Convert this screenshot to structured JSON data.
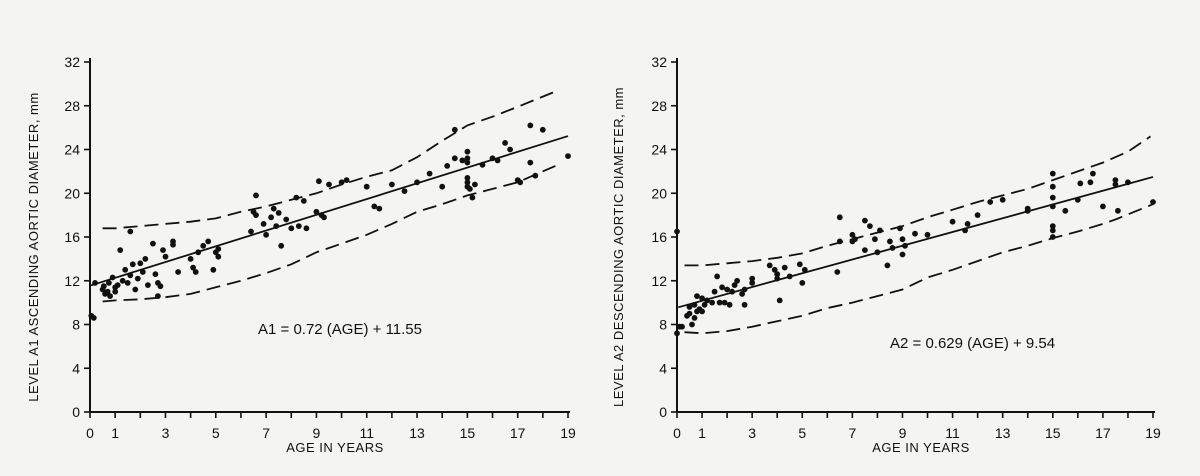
{
  "colors": {
    "ink": "#111111",
    "paper": "#f4f4f2"
  },
  "chart_data": [
    {
      "type": "scatter",
      "xlabel": "AGE IN YEARS",
      "ylabel": "LEVEL A1 ASCENDING AORTIC DIAMETER, mm",
      "annotation": "A1 = 0.72 (AGE) + 11.55",
      "xlim": [
        0,
        19
      ],
      "ylim": [
        0,
        32
      ],
      "xticks": [
        0,
        1,
        3,
        5,
        7,
        9,
        11,
        13,
        15,
        17,
        19
      ],
      "yticks": [
        0,
        4,
        8,
        12,
        16,
        20,
        24,
        28,
        32
      ],
      "grid": false,
      "regression": {
        "slope": 0.72,
        "intercept": 11.55,
        "x_range": [
          0,
          19
        ]
      },
      "upper_band": [
        [
          0.5,
          16.8
        ],
        [
          1,
          16.8
        ],
        [
          2,
          17.0
        ],
        [
          3,
          17.2
        ],
        [
          4,
          17.4
        ],
        [
          5,
          17.7
        ],
        [
          6,
          18.3
        ],
        [
          7,
          18.8
        ],
        [
          8,
          19.4
        ],
        [
          9,
          20.0
        ],
        [
          10,
          20.8
        ],
        [
          11,
          21.5
        ],
        [
          12,
          22.1
        ],
        [
          13,
          23.3
        ],
        [
          14,
          24.8
        ],
        [
          15,
          26.2
        ],
        [
          16,
          27.0
        ],
        [
          17,
          27.9
        ],
        [
          18.5,
          29.3
        ]
      ],
      "lower_band": [
        [
          0.5,
          10.1
        ],
        [
          1,
          10.2
        ],
        [
          2,
          10.3
        ],
        [
          3,
          10.5
        ],
        [
          4,
          10.8
        ],
        [
          5,
          11.4
        ],
        [
          6,
          12.0
        ],
        [
          7,
          12.7
        ],
        [
          8,
          13.5
        ],
        [
          9,
          14.6
        ],
        [
          10,
          15.4
        ],
        [
          11,
          16.2
        ],
        [
          12,
          17.2
        ],
        [
          13,
          18.3
        ],
        [
          14,
          19.0
        ],
        [
          15,
          19.8
        ],
        [
          16,
          20.4
        ],
        [
          17,
          21.0
        ],
        [
          18.5,
          22.5
        ]
      ],
      "points": [
        [
          0.05,
          8.8
        ],
        [
          0.15,
          8.6
        ],
        [
          0.2,
          11.8
        ],
        [
          0.5,
          11.2
        ],
        [
          0.55,
          11.5
        ],
        [
          0.6,
          10.8
        ],
        [
          0.7,
          11.0
        ],
        [
          0.75,
          11.8
        ],
        [
          0.8,
          10.6
        ],
        [
          0.9,
          12.3
        ],
        [
          1.0,
          11.4
        ],
        [
          1.0,
          11.0
        ],
        [
          1.1,
          11.6
        ],
        [
          1.2,
          14.8
        ],
        [
          1.3,
          12.0
        ],
        [
          1.4,
          13.0
        ],
        [
          1.5,
          11.8
        ],
        [
          1.6,
          12.5
        ],
        [
          1.6,
          16.5
        ],
        [
          1.7,
          13.5
        ],
        [
          1.8,
          11.2
        ],
        [
          1.9,
          12.2
        ],
        [
          2.0,
          13.6
        ],
        [
          2.1,
          12.8
        ],
        [
          2.2,
          14.0
        ],
        [
          2.3,
          11.6
        ],
        [
          2.5,
          15.4
        ],
        [
          2.6,
          12.6
        ],
        [
          2.7,
          11.8
        ],
        [
          2.7,
          10.6
        ],
        [
          2.8,
          11.5
        ],
        [
          2.9,
          14.8
        ],
        [
          3.0,
          14.2
        ],
        [
          3.3,
          15.6
        ],
        [
          3.3,
          15.3
        ],
        [
          3.5,
          12.8
        ],
        [
          4.0,
          14.0
        ],
        [
          4.1,
          13.2
        ],
        [
          4.2,
          12.8
        ],
        [
          4.3,
          14.6
        ],
        [
          4.5,
          15.2
        ],
        [
          4.7,
          15.6
        ],
        [
          4.9,
          13.0
        ],
        [
          5.0,
          14.6
        ],
        [
          5.1,
          14.2
        ],
        [
          5.1,
          14.9
        ],
        [
          6.4,
          16.5
        ],
        [
          6.5,
          18.3
        ],
        [
          6.6,
          18.0
        ],
        [
          6.6,
          19.8
        ],
        [
          6.9,
          17.2
        ],
        [
          7.0,
          16.2
        ],
        [
          7.2,
          17.8
        ],
        [
          7.3,
          18.6
        ],
        [
          7.4,
          17.0
        ],
        [
          7.5,
          18.2
        ],
        [
          7.6,
          15.2
        ],
        [
          7.8,
          17.6
        ],
        [
          8.0,
          16.8
        ],
        [
          8.2,
          19.6
        ],
        [
          8.3,
          17.0
        ],
        [
          8.5,
          19.3
        ],
        [
          8.6,
          16.8
        ],
        [
          9.0,
          18.3
        ],
        [
          9.1,
          21.1
        ],
        [
          9.2,
          18.0
        ],
        [
          9.3,
          17.8
        ],
        [
          9.5,
          20.8
        ],
        [
          10.0,
          21.0
        ],
        [
          10.2,
          21.2
        ],
        [
          11.0,
          20.6
        ],
        [
          11.3,
          18.8
        ],
        [
          11.5,
          18.6
        ],
        [
          12.0,
          20.8
        ],
        [
          12.5,
          20.2
        ],
        [
          13.0,
          21.0
        ],
        [
          13.5,
          21.8
        ],
        [
          14.0,
          20.6
        ],
        [
          14.2,
          22.5
        ],
        [
          14.5,
          25.8
        ],
        [
          14.5,
          23.2
        ],
        [
          14.8,
          23.0
        ],
        [
          15.0,
          23.8
        ],
        [
          15.0,
          23.2
        ],
        [
          15.0,
          22.8
        ],
        [
          15.0,
          21.4
        ],
        [
          15.0,
          21.0
        ],
        [
          15.0,
          20.6
        ],
        [
          15.1,
          20.4
        ],
        [
          15.2,
          19.6
        ],
        [
          15.3,
          20.8
        ],
        [
          15.6,
          22.6
        ],
        [
          16.0,
          23.2
        ],
        [
          16.2,
          23.0
        ],
        [
          16.5,
          24.6
        ],
        [
          16.7,
          24.0
        ],
        [
          17.0,
          21.2
        ],
        [
          17.1,
          21.0
        ],
        [
          17.5,
          26.2
        ],
        [
          17.5,
          22.8
        ],
        [
          17.7,
          21.6
        ],
        [
          18.0,
          25.8
        ],
        [
          19.0,
          23.4
        ]
      ]
    },
    {
      "type": "scatter",
      "xlabel": "AGE IN YEARS",
      "ylabel": "LEVEL A2 DESCENDING AORTIC DIAMETER, mm",
      "annotation": "A2 = 0.629 (AGE) + 9.54",
      "xlim": [
        0,
        19
      ],
      "ylim": [
        0,
        32
      ],
      "xticks": [
        0,
        1,
        3,
        5,
        7,
        9,
        11,
        13,
        15,
        17,
        19
      ],
      "yticks": [
        0,
        4,
        8,
        12,
        16,
        20,
        24,
        28,
        32
      ],
      "grid": false,
      "regression": {
        "slope": 0.629,
        "intercept": 9.54,
        "x_range": [
          0.05,
          19
        ]
      },
      "upper_band": [
        [
          0.3,
          13.4
        ],
        [
          1,
          13.4
        ],
        [
          2,
          13.6
        ],
        [
          3,
          13.8
        ],
        [
          4,
          14.1
        ],
        [
          5,
          14.5
        ],
        [
          6,
          15.2
        ],
        [
          7,
          15.8
        ],
        [
          8,
          16.4
        ],
        [
          9,
          17.0
        ],
        [
          10,
          17.8
        ],
        [
          11,
          18.5
        ],
        [
          12,
          19.2
        ],
        [
          13,
          19.8
        ],
        [
          14,
          20.4
        ],
        [
          15,
          21.2
        ],
        [
          16,
          22.0
        ],
        [
          17,
          22.8
        ],
        [
          18,
          23.8
        ],
        [
          18.9,
          25.2
        ]
      ],
      "lower_band": [
        [
          0.3,
          7.3
        ],
        [
          1,
          7.2
        ],
        [
          2,
          7.4
        ],
        [
          3,
          7.8
        ],
        [
          4,
          8.3
        ],
        [
          5,
          8.8
        ],
        [
          6,
          9.5
        ],
        [
          7,
          10.0
        ],
        [
          8,
          10.6
        ],
        [
          9,
          11.2
        ],
        [
          10,
          12.3
        ],
        [
          11,
          13.0
        ],
        [
          12,
          13.8
        ],
        [
          13,
          14.6
        ],
        [
          14,
          15.2
        ],
        [
          15,
          15.9
        ],
        [
          16,
          16.5
        ],
        [
          17,
          17.2
        ],
        [
          17.5,
          17.6
        ],
        [
          19,
          19.0
        ]
      ],
      "points": [
        [
          0.0,
          16.5
        ],
        [
          0.0,
          7.2
        ],
        [
          0.1,
          7.8
        ],
        [
          0.2,
          7.8
        ],
        [
          0.4,
          8.8
        ],
        [
          0.5,
          9.6
        ],
        [
          0.5,
          9.0
        ],
        [
          0.6,
          8.0
        ],
        [
          0.7,
          9.8
        ],
        [
          0.7,
          8.6
        ],
        [
          0.8,
          10.6
        ],
        [
          0.8,
          9.2
        ],
        [
          0.9,
          9.4
        ],
        [
          1.0,
          10.4
        ],
        [
          1.0,
          9.2
        ],
        [
          1.1,
          9.8
        ],
        [
          1.2,
          10.2
        ],
        [
          1.4,
          10.0
        ],
        [
          1.5,
          11.0
        ],
        [
          1.6,
          12.4
        ],
        [
          1.7,
          10.0
        ],
        [
          1.8,
          11.4
        ],
        [
          1.9,
          10.0
        ],
        [
          2.0,
          11.2
        ],
        [
          2.1,
          9.8
        ],
        [
          2.2,
          11.0
        ],
        [
          2.3,
          11.6
        ],
        [
          2.4,
          12.0
        ],
        [
          2.6,
          10.8
        ],
        [
          2.7,
          11.2
        ],
        [
          2.7,
          9.8
        ],
        [
          3.0,
          12.2
        ],
        [
          3.0,
          11.8
        ],
        [
          3.7,
          13.4
        ],
        [
          3.9,
          13.0
        ],
        [
          4.0,
          12.6
        ],
        [
          4.0,
          12.2
        ],
        [
          4.1,
          10.2
        ],
        [
          4.3,
          13.2
        ],
        [
          4.5,
          12.4
        ],
        [
          4.9,
          13.5
        ],
        [
          5.0,
          11.8
        ],
        [
          5.1,
          13.0
        ],
        [
          6.4,
          12.8
        ],
        [
          6.5,
          17.8
        ],
        [
          6.5,
          15.6
        ],
        [
          7.0,
          16.2
        ],
        [
          7.0,
          15.6
        ],
        [
          7.1,
          15.8
        ],
        [
          7.5,
          17.5
        ],
        [
          7.5,
          14.8
        ],
        [
          7.7,
          17.0
        ],
        [
          7.9,
          15.8
        ],
        [
          8.0,
          14.6
        ],
        [
          8.1,
          16.6
        ],
        [
          8.4,
          13.4
        ],
        [
          8.5,
          15.6
        ],
        [
          8.6,
          15.0
        ],
        [
          8.9,
          16.8
        ],
        [
          9.0,
          15.8
        ],
        [
          9.1,
          15.2
        ],
        [
          9.0,
          14.4
        ],
        [
          9.5,
          16.3
        ],
        [
          10.0,
          16.2
        ],
        [
          11.0,
          17.4
        ],
        [
          11.5,
          16.6
        ],
        [
          11.6,
          17.2
        ],
        [
          12.0,
          18.0
        ],
        [
          12.5,
          19.2
        ],
        [
          13.0,
          19.4
        ],
        [
          14.0,
          18.4
        ],
        [
          14.0,
          18.6
        ],
        [
          15.0,
          21.8
        ],
        [
          15.0,
          20.6
        ],
        [
          15.0,
          19.6
        ],
        [
          15.0,
          18.8
        ],
        [
          15.0,
          17.0
        ],
        [
          15.0,
          16.6
        ],
        [
          15.0,
          16.0
        ],
        [
          15.5,
          18.4
        ],
        [
          16.0,
          19.4
        ],
        [
          16.1,
          20.9
        ],
        [
          16.5,
          21.0
        ],
        [
          16.6,
          21.8
        ],
        [
          17.0,
          18.8
        ],
        [
          17.5,
          21.2
        ],
        [
          17.5,
          20.8
        ],
        [
          17.6,
          18.4
        ],
        [
          18.0,
          21.0
        ],
        [
          19.0,
          19.2
        ]
      ]
    }
  ]
}
